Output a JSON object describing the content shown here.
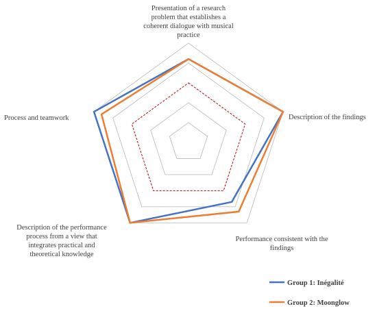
{
  "chart_data": {
    "type": "radar",
    "categories": [
      "Presentation of a research problem that establishes a coherent dialogue with musical practice",
      "Description of the findings",
      "Performance consistent with the findings",
      "Description of the performance process from a view that integrates practical and theoretical knowledge",
      "Process and teamwork"
    ],
    "category_label_lines": [
      [
        "Presentation of a research",
        "problem that establishes a",
        "coherent dialogue with musical",
        "practice"
      ],
      [
        "Description of the findings"
      ],
      [
        "Performance consistent with the",
        "findings"
      ],
      [
        "Description of the performance",
        "process from a view that",
        "integrates practical and",
        "theoretical knowledge"
      ],
      [
        "Process and teamwork"
      ]
    ],
    "rmin": 1,
    "rmax": 5,
    "ring_values": [
      1,
      2,
      3,
      4,
      5
    ],
    "reference_ring_value": 3,
    "series": [
      {
        "name": "Group 1: Inégalité",
        "color": "#4472C4",
        "values": [
          4.2,
          5.0,
          3.7,
          5.0,
          5.0
        ]
      },
      {
        "name": "Group 2: Moonglow",
        "color": "#ED7D31",
        "values": [
          4.2,
          5.0,
          4.3,
          5.0,
          4.6
        ]
      }
    ],
    "grid_color": "#bfbfbf",
    "reference_color": "#c00000",
    "legend_position": "bottom-right"
  }
}
